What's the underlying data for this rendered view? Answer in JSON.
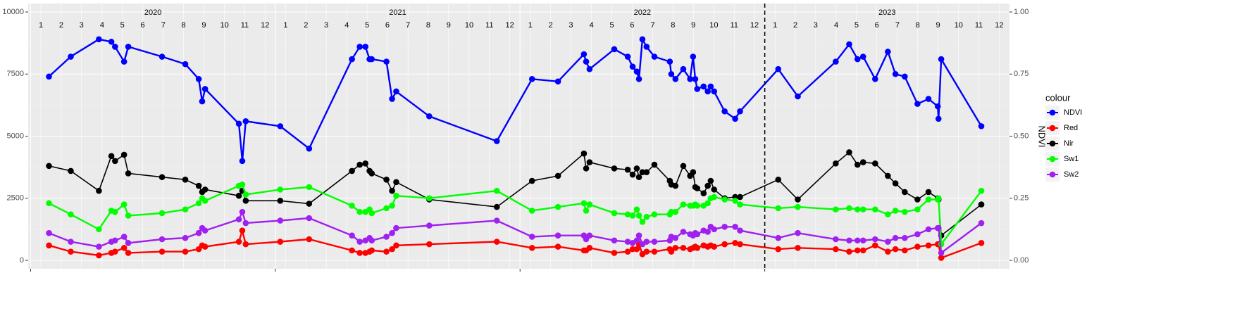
{
  "chart_data": {
    "type": "line",
    "x": [
      2020.075,
      2020.164,
      2020.279,
      2020.33,
      2020.345,
      2020.382,
      2020.399,
      2020.537,
      2020.632,
      2020.687,
      2020.701,
      2020.713,
      2020.851,
      2020.865,
      2020.879,
      2021.02,
      2021.138,
      2021.313,
      2021.345,
      2021.368,
      2021.385,
      2021.394,
      2021.454,
      2021.477,
      2021.494,
      2021.629,
      2021.905,
      2022.049,
      2022.155,
      2022.261,
      2022.27,
      2022.284,
      2022.385,
      2022.44,
      2022.46,
      2022.477,
      2022.486,
      2022.5,
      2022.517,
      2022.549,
      2022.612,
      2022.618,
      2022.635,
      2022.667,
      2022.695,
      2022.707,
      2022.716,
      2022.724,
      2022.75,
      2022.767,
      2022.779,
      2022.793,
      2022.836,
      2022.879,
      2022.899,
      2023.055,
      2023.135,
      2023.29,
      2023.345,
      2023.379,
      2023.402,
      2023.451,
      2023.503,
      2023.534,
      2023.572,
      2023.624,
      2023.669,
      2023.707,
      2023.71,
      2023.721,
      2023.885
    ],
    "series": [
      {
        "name": "NDVI",
        "color": "#0000ff",
        "axis": "y2",
        "values": [
          0.74,
          0.82,
          0.89,
          0.88,
          0.86,
          0.8,
          0.86,
          0.82,
          0.79,
          0.73,
          0.64,
          0.69,
          0.55,
          0.4,
          0.56,
          0.54,
          0.45,
          0.81,
          0.86,
          0.86,
          0.81,
          0.81,
          0.8,
          0.65,
          0.68,
          0.58,
          0.48,
          0.73,
          0.72,
          0.83,
          0.8,
          0.77,
          0.85,
          0.82,
          0.78,
          0.76,
          0.73,
          0.89,
          0.86,
          0.82,
          0.8,
          0.75,
          0.73,
          0.77,
          0.73,
          0.82,
          0.73,
          0.69,
          0.7,
          0.68,
          0.7,
          0.68,
          0.6,
          0.57,
          0.6,
          0.77,
          0.66,
          0.8,
          0.87,
          0.81,
          0.82,
          0.73,
          0.84,
          0.75,
          0.74,
          0.63,
          0.65,
          0.62,
          0.57,
          0.81,
          0.54
        ]
      },
      {
        "name": "Red",
        "color": "#ff0000",
        "values": [
          600,
          350,
          200,
          300,
          350,
          500,
          300,
          350,
          350,
          450,
          600,
          550,
          750,
          1200,
          650,
          750,
          850,
          400,
          300,
          300,
          350,
          400,
          350,
          450,
          600,
          650,
          750,
          500,
          550,
          400,
          400,
          500,
          300,
          350,
          450,
          450,
          650,
          250,
          350,
          350,
          450,
          350,
          500,
          500,
          450,
          500,
          550,
          500,
          600,
          550,
          600,
          550,
          650,
          700,
          650,
          450,
          500,
          450,
          350,
          400,
          400,
          600,
          350,
          450,
          400,
          550,
          600,
          650,
          650,
          100,
          700
        ]
      },
      {
        "name": "Nir",
        "color": "#000000",
        "values": [
          3800,
          3600,
          2800,
          4200,
          4000,
          4250,
          3500,
          3350,
          3250,
          3000,
          2750,
          2850,
          2600,
          2800,
          2400,
          2400,
          2280,
          3600,
          3850,
          3900,
          3600,
          3500,
          3250,
          2800,
          3150,
          2450,
          2150,
          3200,
          3400,
          4300,
          3700,
          3950,
          3700,
          3650,
          3450,
          3700,
          3350,
          3550,
          3550,
          3850,
          3200,
          3050,
          3000,
          3800,
          3400,
          3550,
          2950,
          2900,
          2700,
          3000,
          3200,
          2850,
          2500,
          2550,
          2550,
          3250,
          2450,
          3900,
          4350,
          3850,
          3950,
          3900,
          3400,
          3100,
          2750,
          2450,
          2750,
          2500,
          2450,
          1000,
          2250
        ]
      },
      {
        "name": "Sw1",
        "color": "#00ff00",
        "values": [
          2300,
          1850,
          1250,
          2000,
          1950,
          2250,
          1800,
          1900,
          2050,
          2300,
          2500,
          2400,
          3000,
          3050,
          2650,
          2850,
          2950,
          2200,
          1950,
          1950,
          2050,
          1900,
          2100,
          2200,
          2600,
          2500,
          2800,
          2000,
          2150,
          2300,
          2000,
          2250,
          1900,
          1850,
          1800,
          2050,
          1800,
          1550,
          1750,
          1850,
          1850,
          1950,
          1950,
          2250,
          2200,
          2200,
          2250,
          2200,
          2200,
          2300,
          2500,
          2550,
          2450,
          2400,
          2250,
          2100,
          2150,
          2050,
          2100,
          2050,
          2050,
          2050,
          1850,
          2000,
          1950,
          2050,
          2450,
          2450,
          2500,
          650,
          2800
        ]
      },
      {
        "name": "Sw2",
        "color": "#a020f0",
        "values": [
          1100,
          750,
          550,
          750,
          800,
          950,
          700,
          850,
          900,
          1100,
          1300,
          1200,
          1650,
          1950,
          1500,
          1600,
          1700,
          1000,
          750,
          800,
          900,
          800,
          950,
          1100,
          1300,
          1400,
          1600,
          950,
          1000,
          1000,
          850,
          1000,
          800,
          750,
          700,
          800,
          1000,
          650,
          750,
          750,
          800,
          950,
          900,
          1150,
          1050,
          1000,
          1100,
          1050,
          1200,
          1150,
          1350,
          1250,
          1350,
          1350,
          1200,
          900,
          1100,
          850,
          800,
          800,
          800,
          850,
          750,
          900,
          900,
          1050,
          1250,
          1300,
          1300,
          300,
          1500
        ]
      }
    ],
    "xlim": [
      2019.99,
      2024.0
    ],
    "xticks": [
      {
        "value": 2020.042,
        "label": "1"
      },
      {
        "value": 2020.125,
        "label": "2"
      },
      {
        "value": 2020.208,
        "label": "3"
      },
      {
        "value": 2020.292,
        "label": "4"
      },
      {
        "value": 2020.375,
        "label": "5"
      },
      {
        "value": 2020.458,
        "label": "6"
      },
      {
        "value": 2020.542,
        "label": "7"
      },
      {
        "value": 2020.625,
        "label": "8"
      },
      {
        "value": 2020.708,
        "label": "9"
      },
      {
        "value": 2020.792,
        "label": "10"
      },
      {
        "value": 2020.875,
        "label": "11"
      },
      {
        "value": 2020.958,
        "label": "12"
      },
      {
        "value": 2021.042,
        "label": "1"
      },
      {
        "value": 2021.125,
        "label": "2"
      },
      {
        "value": 2021.208,
        "label": "3"
      },
      {
        "value": 2021.292,
        "label": "4"
      },
      {
        "value": 2021.375,
        "label": "5"
      },
      {
        "value": 2021.458,
        "label": "6"
      },
      {
        "value": 2021.542,
        "label": "7"
      },
      {
        "value": 2021.625,
        "label": "8"
      },
      {
        "value": 2021.708,
        "label": "9"
      },
      {
        "value": 2021.792,
        "label": "10"
      },
      {
        "value": 2021.875,
        "label": "11"
      },
      {
        "value": 2021.958,
        "label": "12"
      },
      {
        "value": 2022.042,
        "label": "1"
      },
      {
        "value": 2022.125,
        "label": "2"
      },
      {
        "value": 2022.208,
        "label": "3"
      },
      {
        "value": 2022.292,
        "label": "4"
      },
      {
        "value": 2022.375,
        "label": "5"
      },
      {
        "value": 2022.458,
        "label": "6"
      },
      {
        "value": 2022.542,
        "label": "7"
      },
      {
        "value": 2022.625,
        "label": "8"
      },
      {
        "value": 2022.708,
        "label": "9"
      },
      {
        "value": 2022.792,
        "label": "10"
      },
      {
        "value": 2022.875,
        "label": "11"
      },
      {
        "value": 2022.958,
        "label": "12"
      },
      {
        "value": 2023.042,
        "label": "1"
      },
      {
        "value": 2023.125,
        "label": "2"
      },
      {
        "value": 2023.208,
        "label": "3"
      },
      {
        "value": 2023.292,
        "label": "4"
      },
      {
        "value": 2023.375,
        "label": "5"
      },
      {
        "value": 2023.458,
        "label": "6"
      },
      {
        "value": 2023.542,
        "label": "7"
      },
      {
        "value": 2023.625,
        "label": "8"
      },
      {
        "value": 2023.708,
        "label": "9"
      },
      {
        "value": 2023.792,
        "label": "10"
      },
      {
        "value": 2023.875,
        "label": "11"
      },
      {
        "value": 2023.958,
        "label": "12"
      }
    ],
    "year_labels": [
      {
        "value": 2020.5,
        "label": "2020"
      },
      {
        "value": 2021.5,
        "label": "2021"
      },
      {
        "value": 2022.5,
        "label": "2022"
      },
      {
        "value": 2023.5,
        "label": "2023"
      }
    ],
    "vline": 2023.0,
    "ylim": [
      -340,
      10340
    ],
    "yticks": [
      0,
      2500,
      5000,
      7500,
      10000
    ],
    "y2lim": [
      -0.034,
      1.034
    ],
    "y2ticks": [
      {
        "value": 0,
        "label": "0.00"
      },
      {
        "value": 0.25,
        "label": "0.25"
      },
      {
        "value": 0.5,
        "label": "0.50"
      },
      {
        "value": 0.75,
        "label": "0.75"
      },
      {
        "value": 1,
        "label": "1.00"
      }
    ],
    "y2_label": "NDVI",
    "legend_title": "colour",
    "legend_position": "right",
    "grid": true
  }
}
